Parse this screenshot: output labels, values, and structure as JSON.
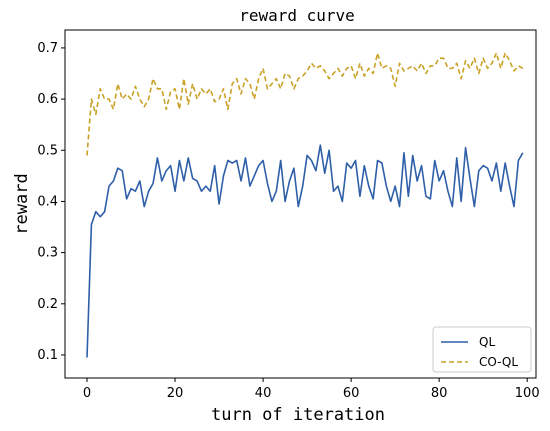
{
  "chart_data": {
    "type": "line",
    "title": "reward curve",
    "xlabel": "turn of iteration",
    "ylabel": "reward",
    "xlim": [
      -5,
      102
    ],
    "ylim": [
      0.055,
      0.735
    ],
    "xticks": [
      0,
      20,
      40,
      60,
      80,
      100
    ],
    "yticks": [
      0.1,
      0.2,
      0.3,
      0.4,
      0.5,
      0.6,
      0.7
    ],
    "grid": false,
    "legend_position": "bottom-right",
    "series": [
      {
        "name": "QL",
        "color": "#2e5fa8",
        "style": "solid",
        "x": [
          0,
          1,
          2,
          3,
          4,
          5,
          6,
          7,
          8,
          9,
          10,
          11,
          12,
          13,
          14,
          15,
          16,
          17,
          18,
          19,
          20,
          21,
          22,
          23,
          24,
          25,
          26,
          27,
          28,
          29,
          30,
          31,
          32,
          33,
          34,
          35,
          36,
          37,
          38,
          39,
          40,
          41,
          42,
          43,
          44,
          45,
          46,
          47,
          48,
          49,
          50,
          51,
          52,
          53,
          54,
          55,
          56,
          57,
          58,
          59,
          60,
          61,
          62,
          63,
          64,
          65,
          66,
          67,
          68,
          69,
          70,
          71,
          72,
          73,
          74,
          75,
          76,
          77,
          78,
          79,
          80,
          81,
          82,
          83,
          84,
          85,
          86,
          87,
          88,
          89,
          90,
          91,
          92,
          93,
          94,
          95,
          96,
          97,
          98,
          99
        ],
        "values": [
          0.095,
          0.355,
          0.38,
          0.37,
          0.38,
          0.43,
          0.44,
          0.465,
          0.46,
          0.405,
          0.425,
          0.42,
          0.44,
          0.39,
          0.42,
          0.435,
          0.485,
          0.44,
          0.46,
          0.47,
          0.42,
          0.48,
          0.44,
          0.485,
          0.445,
          0.44,
          0.42,
          0.43,
          0.42,
          0.47,
          0.395,
          0.45,
          0.48,
          0.475,
          0.48,
          0.44,
          0.485,
          0.43,
          0.45,
          0.47,
          0.48,
          0.435,
          0.4,
          0.42,
          0.48,
          0.4,
          0.44,
          0.465,
          0.39,
          0.43,
          0.49,
          0.48,
          0.46,
          0.51,
          0.455,
          0.5,
          0.42,
          0.43,
          0.4,
          0.475,
          0.465,
          0.48,
          0.41,
          0.47,
          0.43,
          0.405,
          0.48,
          0.475,
          0.43,
          0.4,
          0.43,
          0.39,
          0.495,
          0.41,
          0.49,
          0.44,
          0.47,
          0.41,
          0.405,
          0.48,
          0.44,
          0.46,
          0.42,
          0.39,
          0.485,
          0.4,
          0.505,
          0.445,
          0.39,
          0.46,
          0.47,
          0.465,
          0.44,
          0.475,
          0.42,
          0.475,
          0.43,
          0.39,
          0.48,
          0.495
        ]
      },
      {
        "name": "CO-QL",
        "color": "#c9a227",
        "style": "dashed",
        "x": [
          0,
          1,
          2,
          3,
          4,
          5,
          6,
          7,
          8,
          9,
          10,
          11,
          12,
          13,
          14,
          15,
          16,
          17,
          18,
          19,
          20,
          21,
          22,
          23,
          24,
          25,
          26,
          27,
          28,
          29,
          30,
          31,
          32,
          33,
          34,
          35,
          36,
          37,
          38,
          39,
          40,
          41,
          42,
          43,
          44,
          45,
          46,
          47,
          48,
          49,
          50,
          51,
          52,
          53,
          54,
          55,
          56,
          57,
          58,
          59,
          60,
          61,
          62,
          63,
          64,
          65,
          66,
          67,
          68,
          69,
          70,
          71,
          72,
          73,
          74,
          75,
          76,
          77,
          78,
          79,
          80,
          81,
          82,
          83,
          84,
          85,
          86,
          87,
          88,
          89,
          90,
          91,
          92,
          93,
          94,
          95,
          96,
          97,
          98,
          99
        ],
        "values": [
          0.49,
          0.6,
          0.57,
          0.62,
          0.6,
          0.6,
          0.58,
          0.63,
          0.6,
          0.61,
          0.6,
          0.625,
          0.6,
          0.585,
          0.6,
          0.64,
          0.62,
          0.62,
          0.58,
          0.615,
          0.62,
          0.58,
          0.64,
          0.59,
          0.63,
          0.6,
          0.62,
          0.61,
          0.62,
          0.595,
          0.6,
          0.62,
          0.58,
          0.63,
          0.64,
          0.61,
          0.64,
          0.63,
          0.6,
          0.64,
          0.66,
          0.62,
          0.63,
          0.64,
          0.62,
          0.65,
          0.645,
          0.62,
          0.64,
          0.645,
          0.655,
          0.67,
          0.66,
          0.665,
          0.655,
          0.64,
          0.65,
          0.66,
          0.645,
          0.66,
          0.665,
          0.64,
          0.67,
          0.645,
          0.66,
          0.65,
          0.69,
          0.66,
          0.665,
          0.66,
          0.625,
          0.67,
          0.655,
          0.66,
          0.665,
          0.655,
          0.67,
          0.65,
          0.665,
          0.665,
          0.68,
          0.68,
          0.66,
          0.66,
          0.67,
          0.64,
          0.675,
          0.66,
          0.68,
          0.65,
          0.68,
          0.66,
          0.67,
          0.69,
          0.66,
          0.69,
          0.675,
          0.655,
          0.665,
          0.66
        ]
      }
    ]
  }
}
